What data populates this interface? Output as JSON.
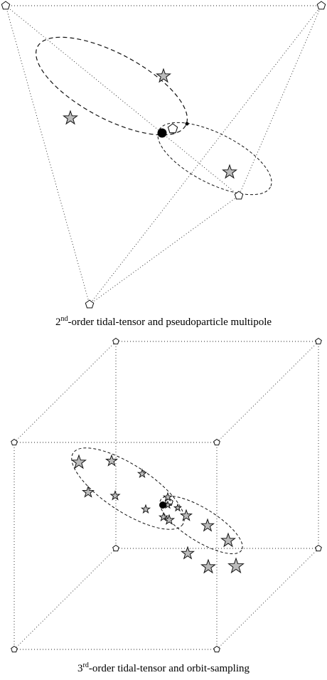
{
  "figure_top": {
    "caption": {
      "order": "2",
      "suffix": "nd",
      "text": "-order tidal-tensor and pseudoparticle multipole"
    }
  },
  "figure_bottom": {
    "caption": {
      "order": "3",
      "suffix": "rd",
      "text": "-order tidal-tensor and orbit-sampling"
    }
  }
}
